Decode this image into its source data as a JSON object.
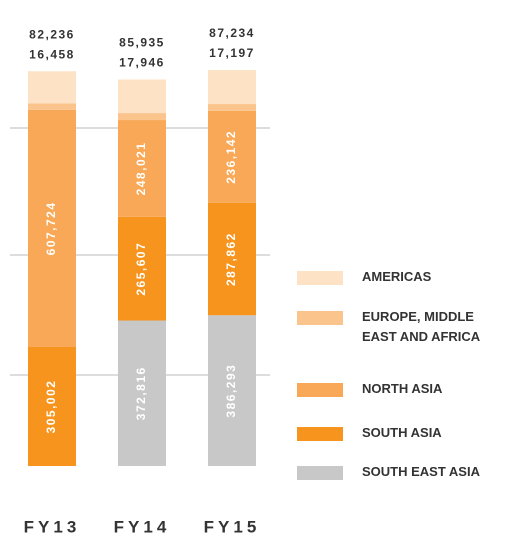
{
  "chart_data": {
    "type": "stacked_bar",
    "categories": [
      "FY13",
      "FY14",
      "FY15"
    ],
    "series": [
      {
        "name": "SOUTH EAST ASIA",
        "color": "#c8c8c8",
        "values": [
          null,
          372816,
          386293
        ],
        "value_labels": [
          null,
          "372,816",
          "386,293"
        ]
      },
      {
        "name": "SOUTH ASIA",
        "color": "#f7941d",
        "values": [
          305002,
          265607,
          287862
        ],
        "value_labels": [
          "305,002",
          "265,607",
          "287,862"
        ]
      },
      {
        "name": "NORTH ASIA",
        "color": "#f8a856",
        "values": [
          607724,
          248021,
          236142
        ],
        "value_labels": [
          "607,724",
          "248,021",
          "236,142"
        ]
      },
      {
        "name": "EUROPE, MIDDLE EAST AND AFRICA",
        "color": "#fbc48c",
        "values": [
          16458,
          17946,
          17197
        ],
        "value_labels": [
          "16,458",
          "17,946",
          "17,197"
        ]
      },
      {
        "name": "AMERICAS",
        "color": "#fde2c6",
        "values": [
          82236,
          85935,
          87234
        ],
        "value_labels": [
          "82,236",
          "85,935",
          "87,234"
        ]
      }
    ]
  }
}
